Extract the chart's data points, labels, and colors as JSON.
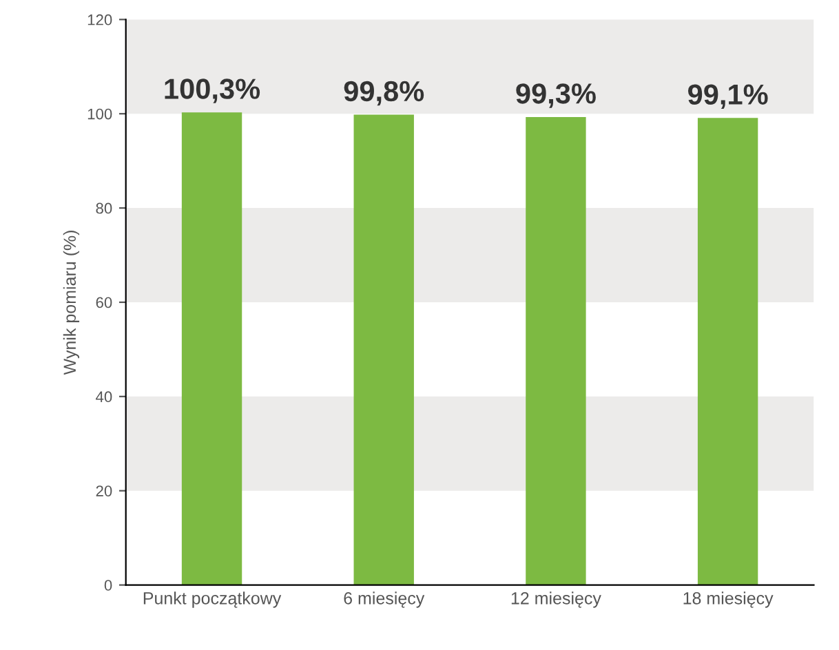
{
  "chart_data": {
    "type": "bar",
    "ylabel": "Wynik pomiaru (%)",
    "categories": [
      "Punkt początkowy",
      "6 miesięcy",
      "12 miesięcy",
      "18 miesięcy"
    ],
    "values": [
      100.3,
      99.8,
      99.3,
      99.1
    ],
    "color": "#7dba42",
    "value_labels": [
      "100,3%",
      "99,8%",
      "99,3%",
      "99,1%"
    ],
    "ylim": [
      0,
      120
    ],
    "yticks": [
      0,
      20,
      40,
      60,
      80,
      100,
      120
    ],
    "bands": [
      {
        "axis": "y",
        "from": 20,
        "to": 40,
        "color": "#ecebea"
      },
      {
        "axis": "y",
        "from": 60,
        "to": 80,
        "color": "#ecebea"
      },
      {
        "axis": "y",
        "from": 100,
        "to": 120,
        "color": "#ecebea"
      }
    ],
    "grid": false,
    "legend": false
  }
}
